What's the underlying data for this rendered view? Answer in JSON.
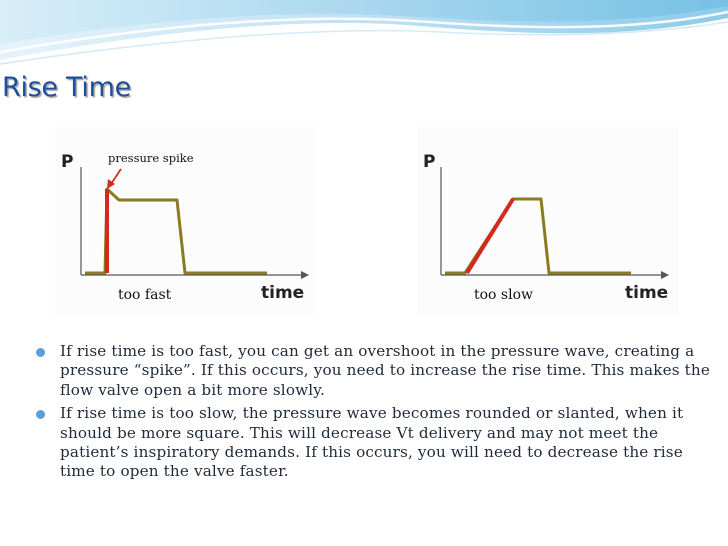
{
  "title": "Rise Time",
  "diagrams": {
    "fast": {
      "y_axis": "P",
      "x_axis": "time",
      "caption": "too fast",
      "annotation": "pressure spike"
    },
    "slow": {
      "y_axis": "P",
      "x_axis": "time",
      "caption": "too slow"
    }
  },
  "bullets": [
    "If rise time is too fast, you can get an overshoot in the pressure wave, creating a pressure “spike”. If this occurs, you need to increase the rise time. This makes the flow valve open a bit more slowly.",
    "If rise time is too  slow, the pressure wave becomes rounded or slanted, when it should be more square. This will decrease Vt delivery and may not meet the patient’s inspiratory demands. If this occurs, you will need to decrease the rise time to open the valve faster."
  ],
  "colors": {
    "title": "#1f4e9c",
    "waveform": "#8a7a22",
    "rise_segment": "#d42a1e",
    "bullet": "#5aa0d8"
  }
}
